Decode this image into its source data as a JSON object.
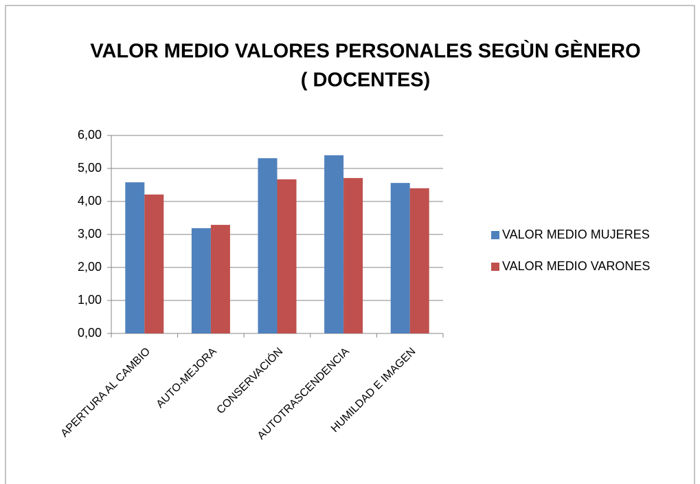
{
  "chart_data": {
    "type": "bar",
    "title": [
      "VALOR MEDIO VALORES PERSONALES  SEGÙN GÈNERO",
      "( DOCENTES)"
    ],
    "categories": [
      "APERTURA AL CAMBIO",
      "AUTO-MEJORA",
      "CONSERVACIÓN",
      "AUTOTRASCENDENCIA",
      "HUMILDAD E IMAGEN"
    ],
    "series": [
      {
        "name": "VALOR MEDIO MUJERES",
        "color": "#4f81bd",
        "values": [
          4.58,
          3.19,
          5.31,
          5.4,
          4.56
        ]
      },
      {
        "name": "VALOR MEDIO VARONES",
        "color": "#c0504d",
        "values": [
          4.21,
          3.29,
          4.67,
          4.71,
          4.4
        ]
      }
    ],
    "ylim": [
      0,
      6
    ],
    "yticks": [
      {
        "value": 0,
        "label": "0,00"
      },
      {
        "value": 1,
        "label": "1,00"
      },
      {
        "value": 2,
        "label": "2,00"
      },
      {
        "value": 3,
        "label": "3,00"
      },
      {
        "value": 4,
        "label": "4,00"
      },
      {
        "value": 5,
        "label": "5,00"
      },
      {
        "value": 6,
        "label": "6,00"
      }
    ],
    "grid": true,
    "legend": "right"
  }
}
